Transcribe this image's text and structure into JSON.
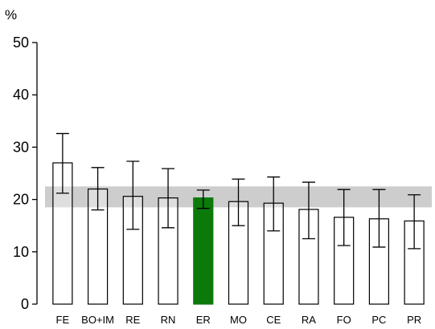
{
  "chart_data": {
    "type": "bar",
    "unit_label": "%",
    "categories": [
      "FE",
      "BO+IM",
      "RE",
      "RN",
      "ER",
      "MO",
      "CE",
      "RA",
      "FO",
      "PC",
      "PR"
    ],
    "values": [
      27.0,
      22.0,
      20.6,
      20.3,
      20.3,
      19.6,
      19.3,
      18.1,
      16.6,
      16.3,
      15.9
    ],
    "error_low": [
      21.2,
      18.0,
      14.3,
      14.6,
      18.3,
      15.0,
      14.0,
      12.5,
      11.2,
      10.9,
      10.6
    ],
    "error_high": [
      32.6,
      26.1,
      27.3,
      25.9,
      21.8,
      23.9,
      24.3,
      23.3,
      21.9,
      21.9,
      20.9
    ],
    "highlight_category": "ER",
    "reference_band": [
      18.5,
      22.5
    ],
    "ylim": [
      0,
      50
    ],
    "yticks": [
      0,
      10,
      20,
      30,
      40,
      50
    ],
    "xlabel": "",
    "ylabel": "",
    "grid": false,
    "colors": {
      "bar_fill": "#ffffff",
      "bar_stroke": "#000000",
      "highlight_fill": "#0b7a0b",
      "band_fill": "#c8c8c8"
    }
  }
}
